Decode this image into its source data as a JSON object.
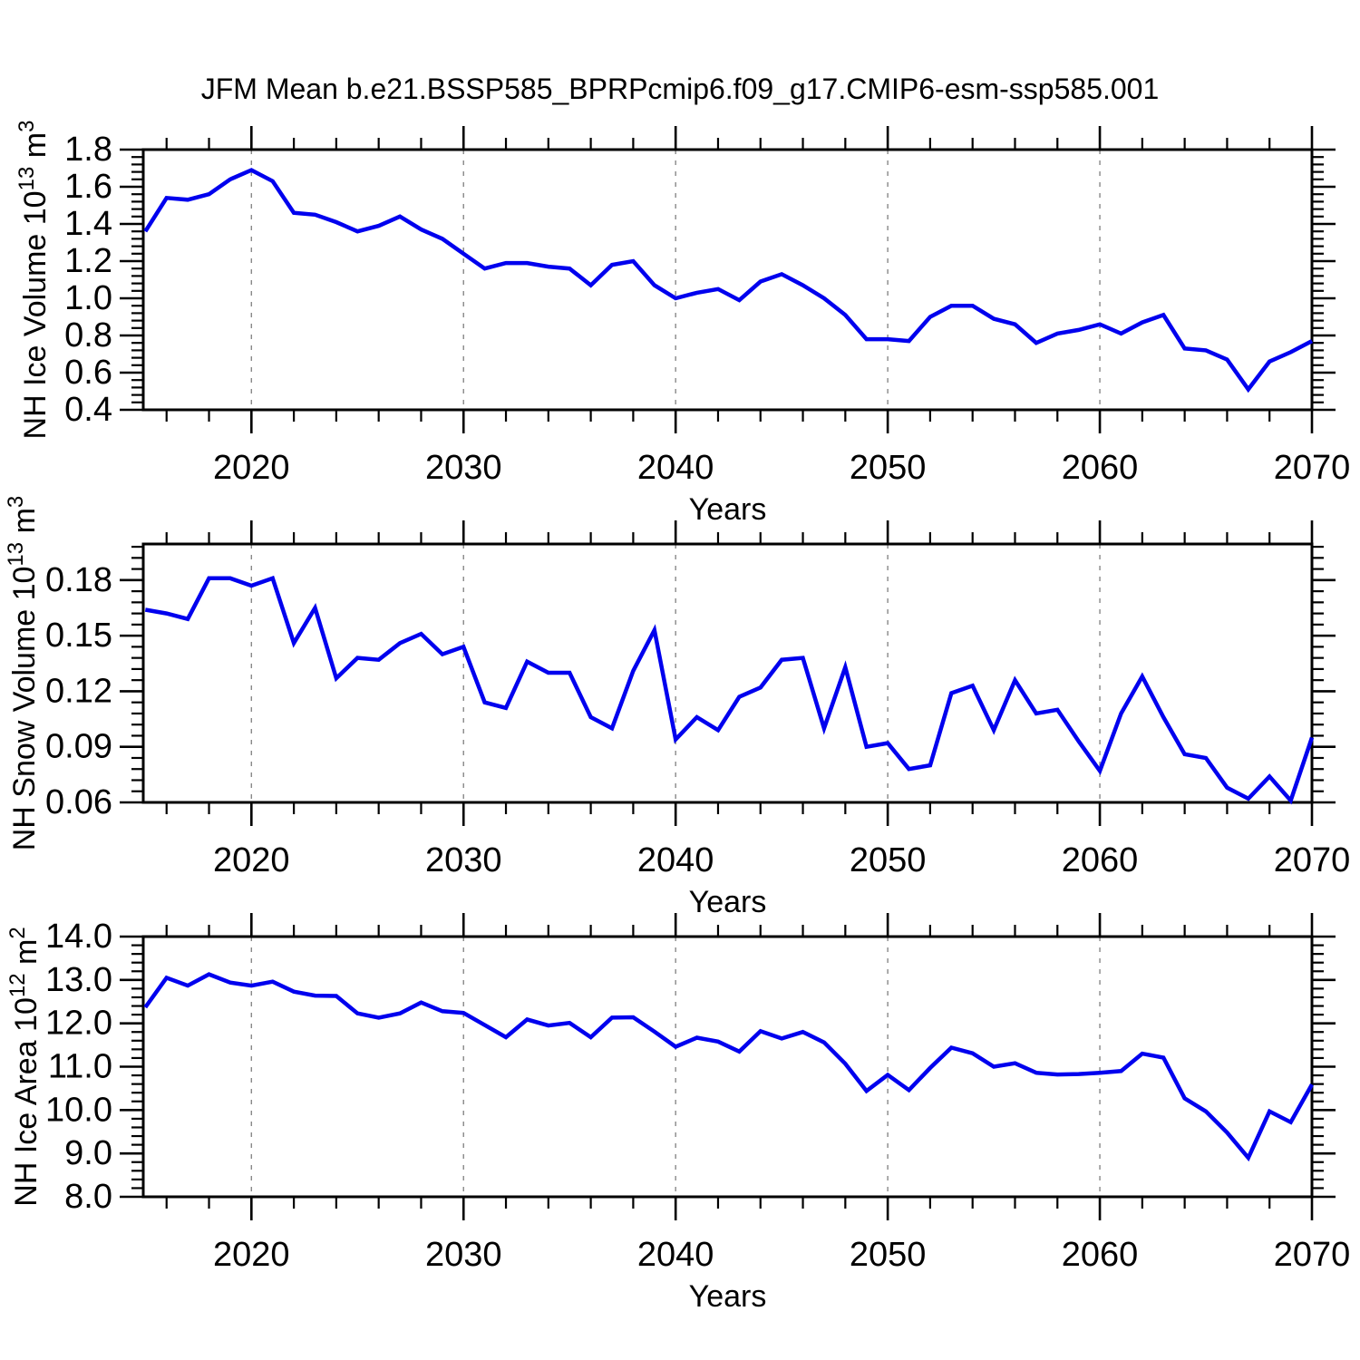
{
  "title": "JFM Mean b.e21.BSSP585_BPRPcmip6.f09_g17.CMIP6-esm-ssp585.001",
  "colors": {
    "line": "#0000EE",
    "frame": "#000000",
    "grid": "#888888",
    "text": "#000000",
    "background": "#ffffff"
  },
  "x_axis": {
    "label": "Years",
    "range": [
      2014.9,
      2070
    ],
    "ticks": [
      2020,
      2030,
      2040,
      2050,
      2060,
      2070
    ],
    "tick_labels": [
      "2020",
      "2030",
      "2040",
      "2050",
      "2060",
      "2070"
    ],
    "minor_step": 2,
    "grid_lines": [
      2020,
      2030,
      2040,
      2050,
      2060
    ],
    "years": [
      2015,
      2016,
      2017,
      2018,
      2019,
      2020,
      2021,
      2022,
      2023,
      2024,
      2025,
      2026,
      2027,
      2028,
      2029,
      2030,
      2031,
      2032,
      2033,
      2034,
      2035,
      2036,
      2037,
      2038,
      2039,
      2040,
      2041,
      2042,
      2043,
      2044,
      2045,
      2046,
      2047,
      2048,
      2049,
      2050,
      2051,
      2052,
      2053,
      2054,
      2055,
      2056,
      2057,
      2058,
      2059,
      2060,
      2061,
      2062,
      2063,
      2064,
      2065,
      2066,
      2067,
      2068,
      2069,
      2070
    ]
  },
  "chart_data": [
    {
      "type": "line",
      "id": "nh-ice-volume",
      "ylabel": "NH Ice Volume 10^13 m^3",
      "ylabel_parts": [
        {
          "text": "NH Ice Volume 10",
          "sup": false
        },
        {
          "text": "13",
          "sup": true
        },
        {
          "text": " m",
          "sup": false
        },
        {
          "text": "3",
          "sup": true
        }
      ],
      "xlabel": "Years",
      "ylim": [
        0.4,
        1.8
      ],
      "yticks": [
        1.8,
        1.6,
        1.4,
        1.2,
        1.0,
        0.8,
        0.6,
        0.4
      ],
      "ytick_labels": [
        "1.8",
        "1.6",
        "1.4",
        "1.2",
        "1.0",
        "0.8",
        "0.6",
        "0.4"
      ],
      "y_minor_step": 0.04,
      "values": [
        1.36,
        1.54,
        1.53,
        1.56,
        1.64,
        1.69,
        1.63,
        1.46,
        1.45,
        1.41,
        1.36,
        1.39,
        1.44,
        1.37,
        1.32,
        1.24,
        1.16,
        1.19,
        1.19,
        1.17,
        1.16,
        1.07,
        1.18,
        1.2,
        1.07,
        1.0,
        1.03,
        1.05,
        0.99,
        1.09,
        1.13,
        1.07,
        1.0,
        0.91,
        0.78,
        0.78,
        0.77,
        0.9,
        0.96,
        0.96,
        0.89,
        0.86,
        0.76,
        0.81,
        0.83,
        0.86,
        0.81,
        0.87,
        0.91,
        0.73,
        0.72,
        0.67,
        0.51,
        0.66,
        0.71,
        0.77
      ]
    },
    {
      "type": "line",
      "id": "nh-snow-volume",
      "ylabel": "NH Snow Volume 10^13 m^3",
      "ylabel_parts": [
        {
          "text": "NH Snow Volume 10",
          "sup": false
        },
        {
          "text": "13",
          "sup": true
        },
        {
          "text": " m",
          "sup": false
        },
        {
          "text": "3",
          "sup": true
        }
      ],
      "xlabel": "Years",
      "ylim": [
        0.06,
        0.1995
      ],
      "yticks": [
        0.18,
        0.15,
        0.12,
        0.09,
        0.06
      ],
      "ytick_labels": [
        "0.18",
        "0.15",
        "0.12",
        "0.09",
        "0.06"
      ],
      "y_minor_step": 0.006,
      "values": [
        0.164,
        0.162,
        0.159,
        0.181,
        0.181,
        0.177,
        0.181,
        0.146,
        0.165,
        0.127,
        0.138,
        0.137,
        0.146,
        0.151,
        0.14,
        0.144,
        0.114,
        0.111,
        0.136,
        0.13,
        0.13,
        0.106,
        0.1,
        0.131,
        0.153,
        0.094,
        0.106,
        0.099,
        0.117,
        0.122,
        0.137,
        0.138,
        0.1,
        0.133,
        0.09,
        0.092,
        0.078,
        0.08,
        0.119,
        0.123,
        0.099,
        0.126,
        0.108,
        0.11,
        0.093,
        0.077,
        0.108,
        0.128,
        0.106,
        0.086,
        0.084,
        0.068,
        0.062,
        0.074,
        0.061,
        0.095
      ]
    },
    {
      "type": "line",
      "id": "nh-ice-area",
      "ylabel": "NH Ice Area 10^12 m^2",
      "ylabel_parts": [
        {
          "text": "NH Ice Area 10",
          "sup": false
        },
        {
          "text": "12",
          "sup": true
        },
        {
          "text": " m",
          "sup": false
        },
        {
          "text": "2",
          "sup": true
        }
      ],
      "xlabel": "Years",
      "ylim": [
        8.0,
        14.0
      ],
      "yticks": [
        14.0,
        13.0,
        12.0,
        11.0,
        10.0,
        9.0,
        8.0
      ],
      "ytick_labels": [
        "14.0",
        "13.0",
        "12.0",
        "11.0",
        "10.0",
        "9.0",
        "8.0"
      ],
      "y_minor_step": 0.2,
      "values": [
        12.37,
        13.05,
        12.87,
        13.13,
        12.94,
        12.87,
        12.96,
        12.73,
        12.64,
        12.63,
        12.23,
        12.13,
        12.23,
        12.48,
        12.28,
        12.24,
        11.96,
        11.68,
        12.09,
        11.95,
        12.01,
        11.68,
        12.13,
        12.14,
        11.81,
        11.46,
        11.67,
        11.58,
        11.35,
        11.82,
        11.65,
        11.8,
        11.56,
        11.07,
        10.44,
        10.81,
        10.46,
        10.97,
        11.44,
        11.31,
        11.0,
        11.08,
        10.86,
        10.82,
        10.83,
        10.86,
        10.9,
        11.3,
        11.21,
        10.27,
        9.97,
        9.48,
        8.9,
        9.97,
        9.72,
        10.59
      ]
    }
  ]
}
